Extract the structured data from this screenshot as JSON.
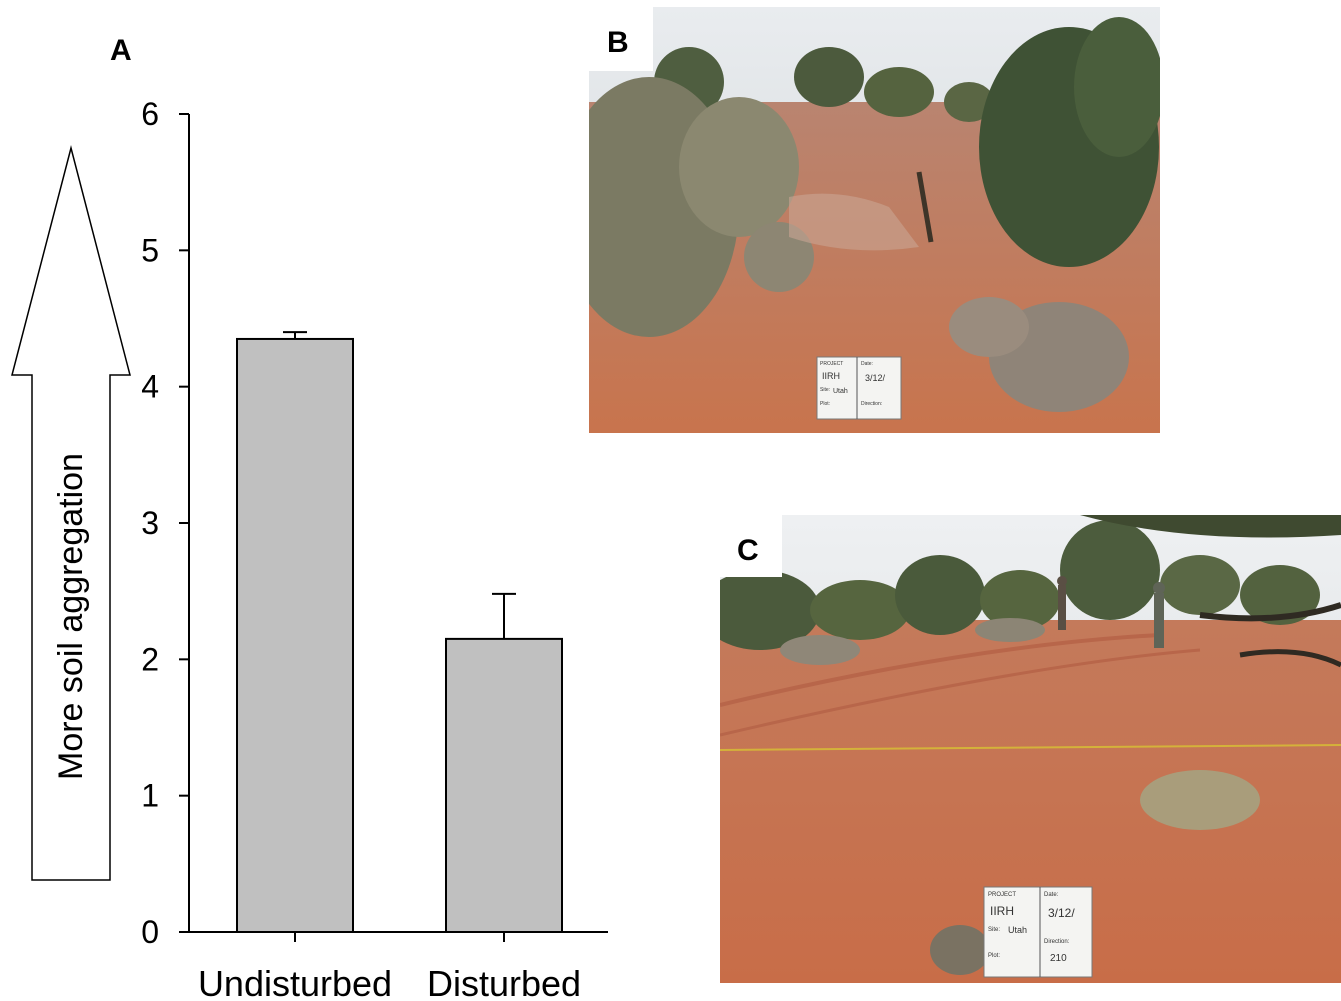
{
  "panels": {
    "a_label": "A",
    "b_label": "B",
    "c_label": "C"
  },
  "arrow_label": "More soil aggregation",
  "photo_b": {
    "sign_lines": [
      "PROJECT",
      "Date:",
      "IIRH",
      "3/12/",
      "Site:",
      "Utah",
      "Plot:",
      "Direction:"
    ]
  },
  "photo_c": {
    "sign_lines": [
      "PROJECT",
      "Date:",
      "IIRH",
      "3/12/",
      "Site:",
      "Utah",
      "Plot:",
      "Direction:",
      "210"
    ]
  },
  "chart_data": {
    "type": "bar",
    "categories": [
      "Undisturbed",
      "Disturbed"
    ],
    "values": [
      4.35,
      2.15
    ],
    "error": [
      0.05,
      0.33
    ],
    "ylim": [
      0,
      6
    ],
    "yticks": [
      0,
      1,
      2,
      3,
      4,
      5,
      6
    ],
    "title": "",
    "xlabel": "",
    "ylabel": "",
    "bar_color": "#c0c0c0",
    "grid": false,
    "legend": "none"
  }
}
